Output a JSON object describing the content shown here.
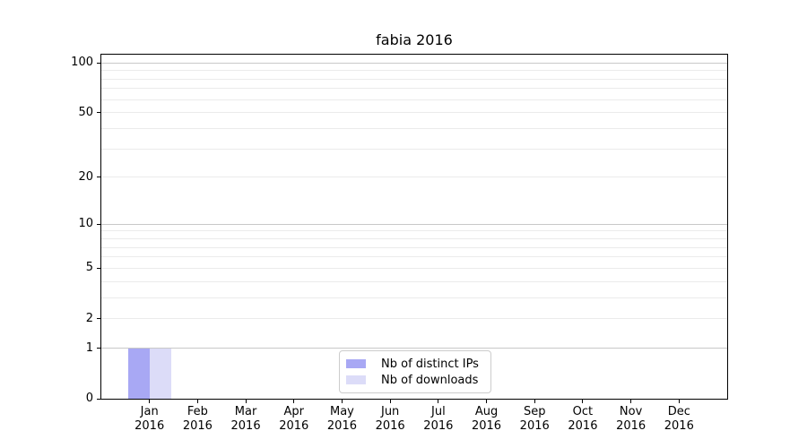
{
  "chart_data": {
    "type": "bar",
    "title": "fabia 2016",
    "categories": [
      "Jan 2016",
      "Feb 2016",
      "Mar 2016",
      "Apr 2016",
      "May 2016",
      "Jun 2016",
      "Jul 2016",
      "Aug 2016",
      "Sep 2016",
      "Oct 2016",
      "Nov 2016",
      "Dec 2016"
    ],
    "series": [
      {
        "name": "Nb of distinct IPs",
        "color": "#a8a8f4",
        "values": [
          1,
          0,
          0,
          0,
          0,
          0,
          0,
          0,
          0,
          0,
          0,
          0
        ]
      },
      {
        "name": "Nb of downloads",
        "color": "#dcdcf8",
        "values": [
          1,
          0,
          0,
          0,
          0,
          0,
          0,
          0,
          0,
          0,
          0,
          0
        ]
      }
    ],
    "xlabel": "",
    "ylabel": "",
    "y_scale": "log1p",
    "ylim": [
      0,
      112
    ],
    "y_ticks": [
      100,
      50,
      20,
      10,
      5,
      2,
      1,
      0
    ],
    "grid": {
      "major_values": [
        1,
        10,
        100
      ],
      "minor_values": [
        2,
        3,
        4,
        5,
        6,
        7,
        8,
        9,
        20,
        30,
        40,
        50,
        60,
        70,
        80,
        90
      ],
      "major_color": "#c8c8c8",
      "minor_color": "#ebebeb"
    },
    "legend": {
      "position": "lower center"
    },
    "text_color": "#000000",
    "axis_color": "#000000",
    "background": "#ffffff"
  }
}
